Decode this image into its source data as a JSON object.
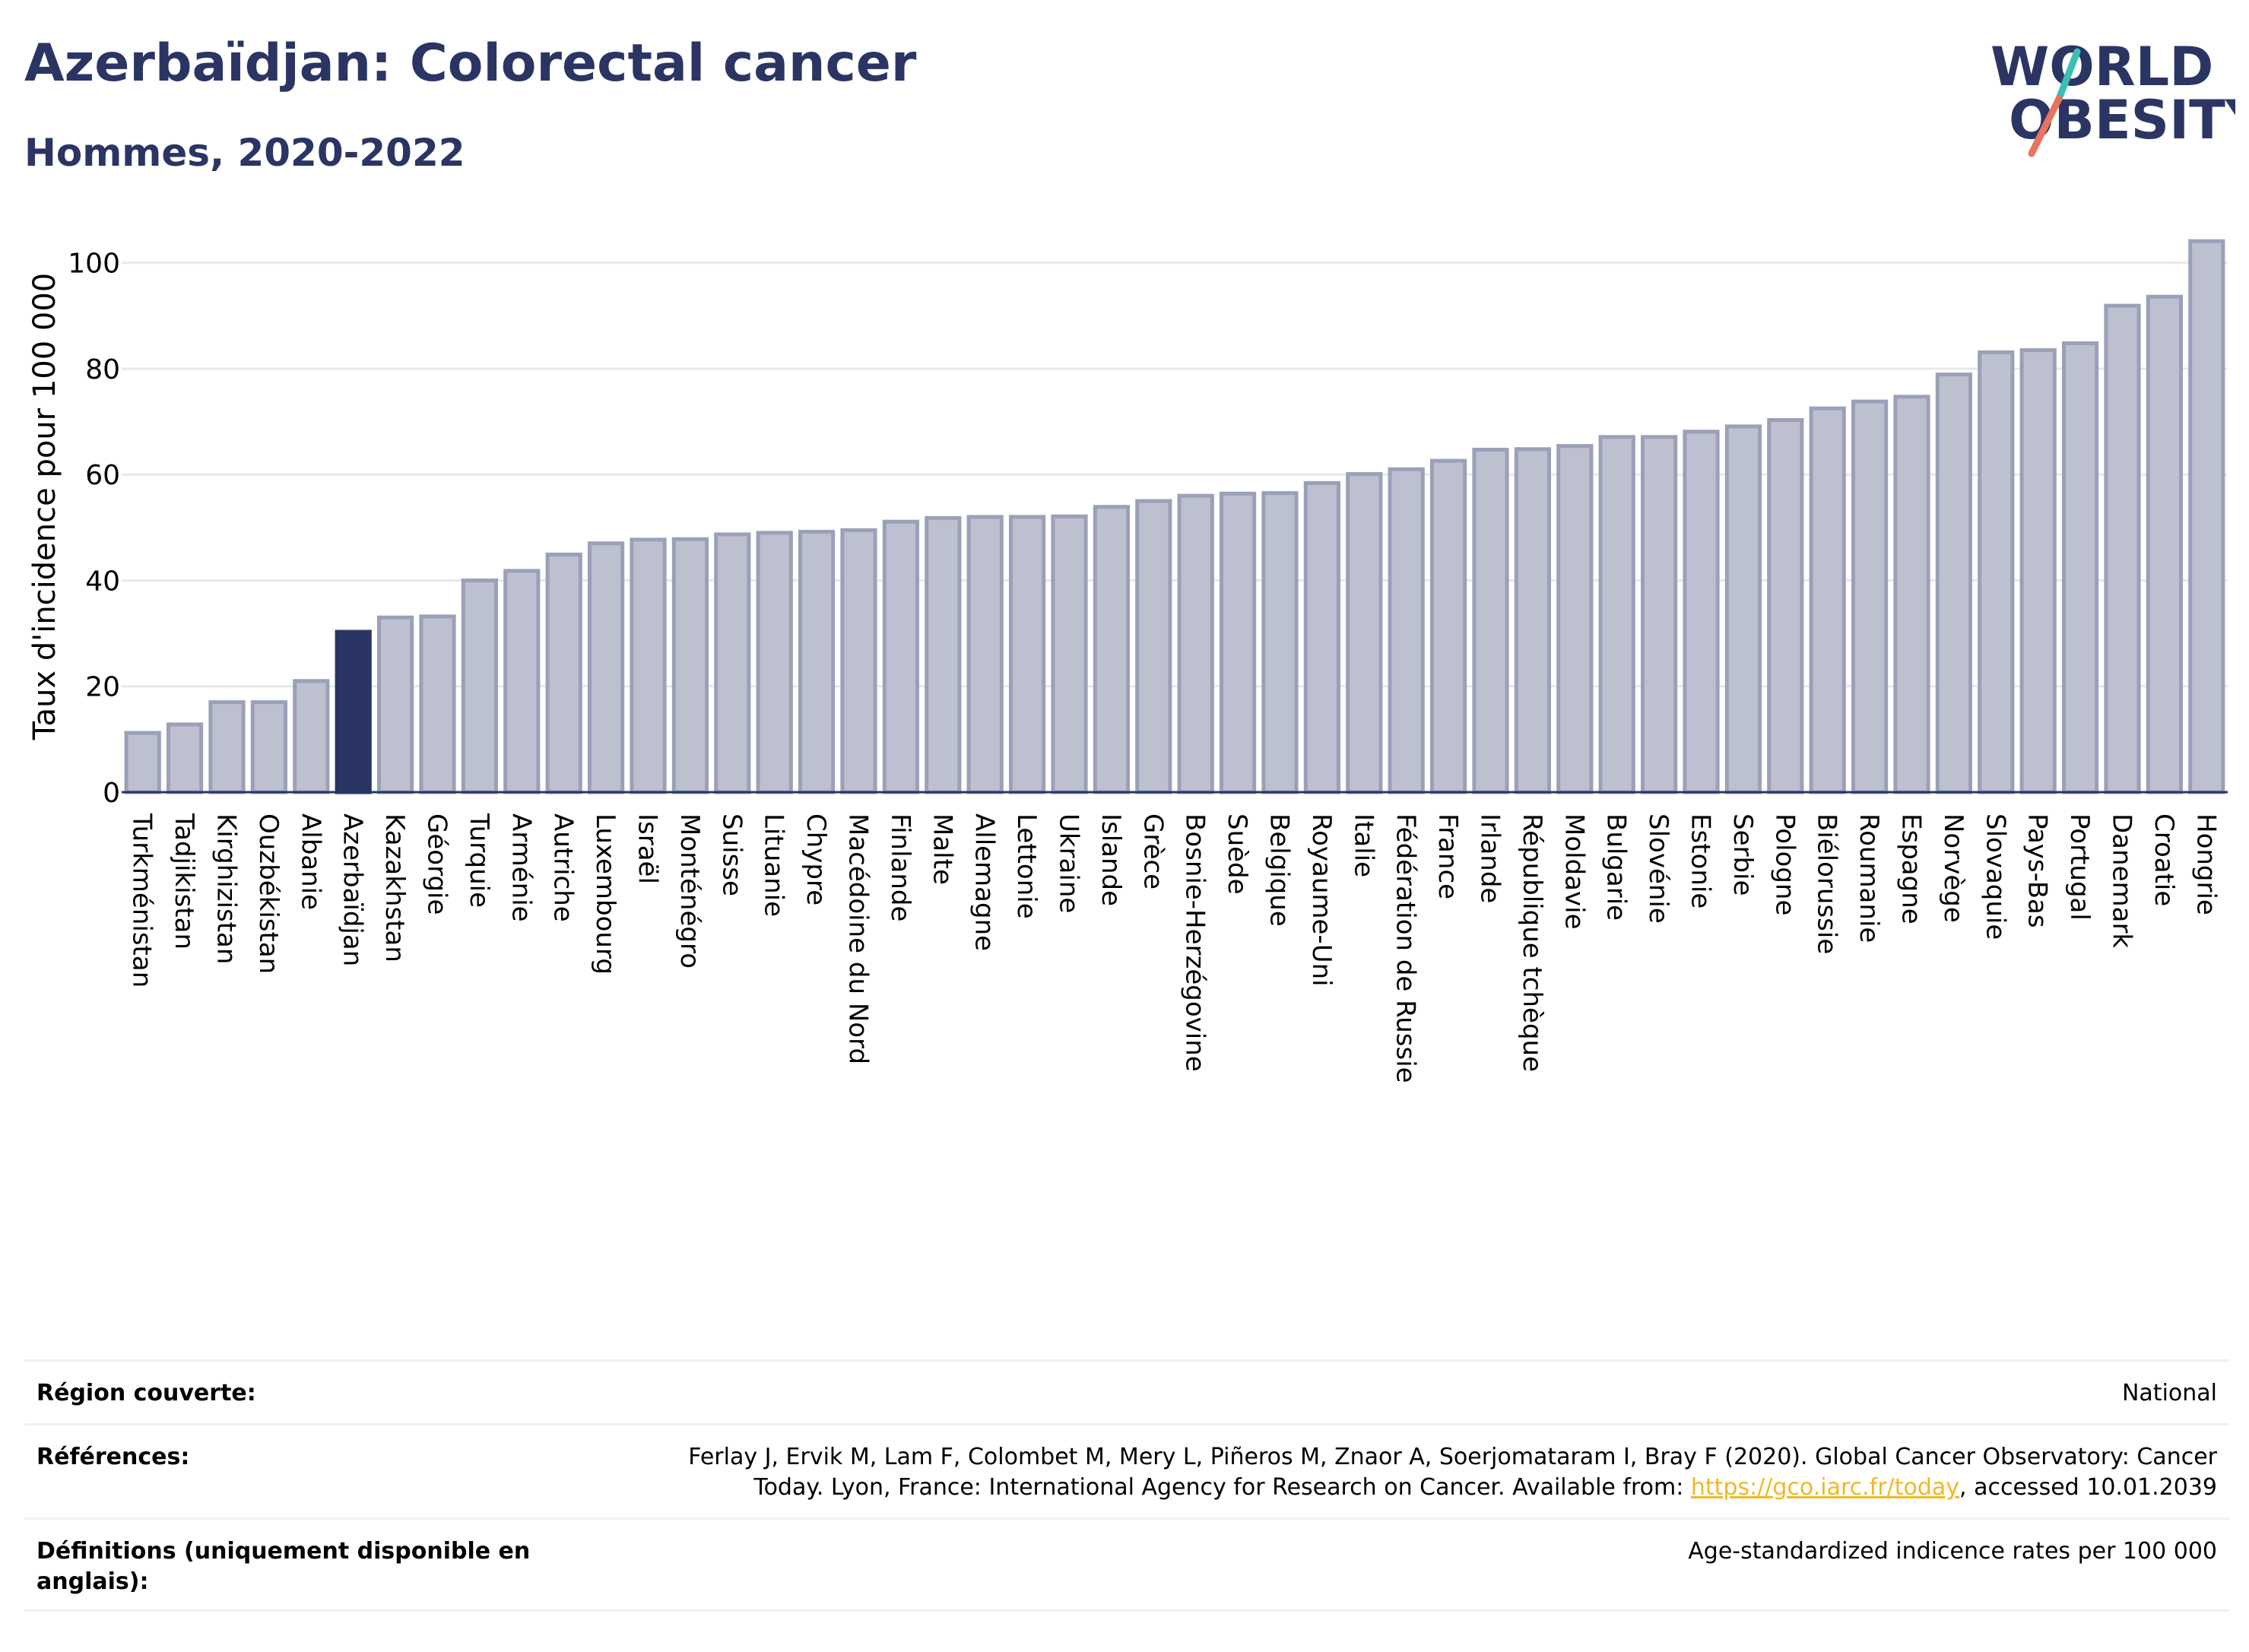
{
  "header": {
    "title": "Azerbaïdjan: Colorectal cancer",
    "subtitle": "Hommes, 2020-2022",
    "logo_line1": "WORLD",
    "logo_line2": "OBESITY"
  },
  "chart_data": {
    "type": "bar",
    "ylabel": "Taux d'incidence pour 100 000",
    "ylim": [
      0,
      108
    ],
    "yticks": [
      0,
      20,
      40,
      60,
      80,
      100
    ],
    "grid": true,
    "highlight": "Azerbaïdjan",
    "colors": {
      "bar": "#bcc0cf",
      "bar_edge": "#9aa0b8",
      "highlight": "#2b3564",
      "grid": "#e8e8ec",
      "axis": "#2b3564"
    },
    "categories": [
      "Turkménistan",
      "Tadjikistan",
      "Kirghizistan",
      "Ouzbékistan",
      "Albanie",
      "Azerbaïdjan",
      "Kazakhstan",
      "Géorgie",
      "Turquie",
      "Arménie",
      "Autriche",
      "Luxembourg",
      "Israël",
      "Monténégro",
      "Suisse",
      "Lituanie",
      "Chypre",
      "Macédoine du Nord",
      "Finlande",
      "Malte",
      "Allemagne",
      "Lettonie",
      "Ukraine",
      "Islande",
      "Grèce",
      "Bosnie-Herzégovine",
      "Suède",
      "Belgique",
      "Royaume-Uni",
      "Italie",
      "Fédération de Russie",
      "France",
      "Irlande",
      "République tchèque",
      "Moldavie",
      "Bulgarie",
      "Slovénie",
      "Estonie",
      "Serbie",
      "Pologne",
      "Biélorussie",
      "Roumanie",
      "Espagne",
      "Norvège",
      "Slovaquie",
      "Pays-Bas",
      "Portugal",
      "Danemark",
      "Croatie",
      "Hongrie"
    ],
    "values": [
      11.2,
      12.8,
      17.0,
      17.0,
      21.0,
      30.3,
      33.0,
      33.2,
      40.0,
      41.8,
      44.9,
      47.0,
      47.7,
      47.8,
      48.7,
      49.0,
      49.2,
      49.5,
      51.1,
      51.8,
      52.0,
      52.0,
      52.1,
      53.9,
      55.0,
      56.0,
      56.4,
      56.5,
      58.4,
      60.1,
      61.0,
      62.6,
      64.7,
      64.8,
      65.4,
      67.1,
      67.1,
      68.1,
      69.1,
      70.3,
      72.5,
      73.8,
      74.7,
      78.9,
      83.1,
      83.5,
      84.8,
      91.9,
      93.6,
      104.1
    ]
  },
  "info": {
    "region_label": "Région couverte:",
    "region_value": "National",
    "references_label": "Références:",
    "references_line1": "Ferlay J, Ervik M, Lam F, Colombet M, Mery L, Piñeros M, Znaor A, Soerjomataram I, Bray F (2020). Global Cancer Observatory: Cancer",
    "references_line2_pre": "Today. Lyon, France: International Agency for Research on Cancer. Available from: ",
    "references_link": "https://gco.iarc.fr/today",
    "references_line2_post": ", accessed 10.01.2039",
    "definitions_label": "Définitions (uniquement disponible en anglais):",
    "definitions_value": "Age-standardized indicence rates per 100 000"
  }
}
